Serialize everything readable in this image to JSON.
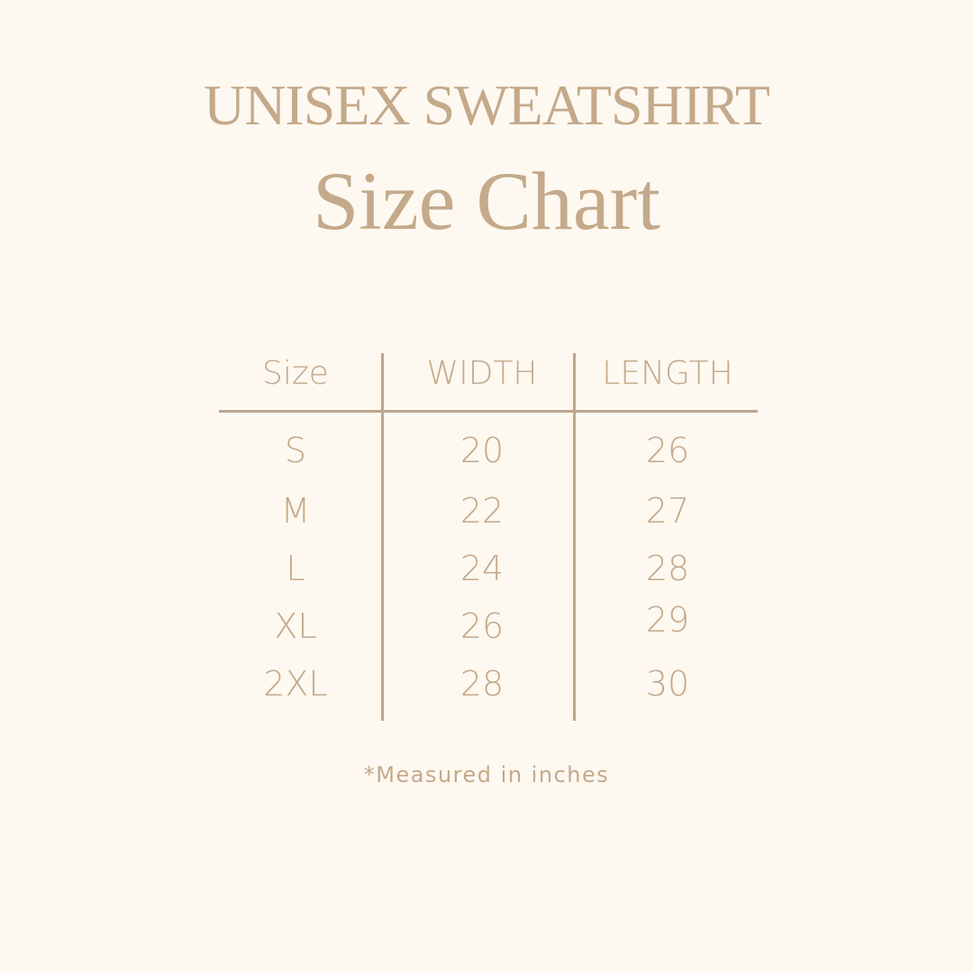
{
  "title": {
    "line1": "UNISEX SWEATSHIRT",
    "line2": "Size Chart"
  },
  "table": {
    "headers": [
      "Size",
      "WIDTH",
      "LENGTH"
    ],
    "rows": [
      [
        "S",
        "20",
        "26"
      ],
      [
        "M",
        "22",
        "27"
      ],
      [
        "L",
        "24",
        "28"
      ],
      [
        "XL",
        "26",
        "29"
      ],
      [
        "2XL",
        "28",
        "30"
      ]
    ]
  },
  "footnote": "*Measured in inches",
  "colors": {
    "background": "#fdf8f0",
    "text": "#c4a98a",
    "rule": "#bca68f"
  }
}
